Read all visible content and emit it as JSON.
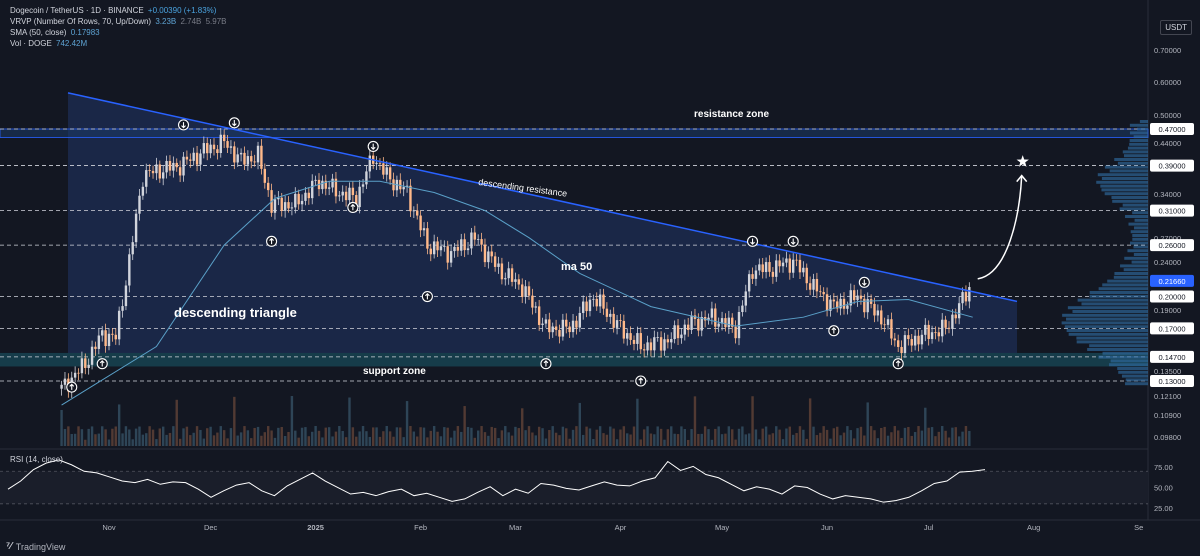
{
  "header": {
    "symbol_line": "Dogecoin / TetherUS · 1D · BINANCE",
    "change": "+0.00390 (+1.83%)",
    "vrvp_label": "VRVP (Number Of Rows, 70, Up/Down)",
    "vrvp_values": [
      "3.23B",
      "2.74B",
      "5.97B"
    ],
    "sma_label": "SMA (50, close)",
    "sma_value": "0.17983",
    "vol_label": "Vol · DOGE",
    "vol_value": "742.42M"
  },
  "currency": "USDT",
  "rsi_label": "RSI (14, close)",
  "branding": "TradingView",
  "annotations": {
    "resistance_zone": "resistance zone",
    "descending_resistance": "descending resistance",
    "ma50": "ma 50",
    "descending_triangle": "descending triangle",
    "support_zone": "support zone"
  },
  "colors": {
    "background": "#131722",
    "triangle_fill": "#1c2a4d",
    "resistance_line": "#2962ff",
    "ma_line": "#5aa0c8",
    "zone_fill": "#26c6da",
    "candle_up": "#d1d4dc",
    "candle_down": "#ffb98a",
    "rsi_line": "#ffffff"
  },
  "chart_data": {
    "type": "candlestick",
    "title": "Dogecoin / TetherUS · 1D · BINANCE",
    "x_tick_labels": [
      "Nov",
      "Dec",
      "2025",
      "Feb",
      "Mar",
      "Apr",
      "May",
      "Jun",
      "Jul",
      "Aug",
      "Se"
    ],
    "y_scale": "log",
    "y_tick_labels": [
      "0.70000",
      "0.60000",
      "0.50000",
      "0.44000",
      "0.34000",
      "0.27000",
      "0.24000",
      "0.19000",
      "0.13500",
      "0.12100",
      "0.10900",
      "0.09800"
    ],
    "highlighted_prices": [
      "0.47000",
      "0.39000",
      "0.31000",
      "0.26000",
      "0.21660",
      "0.20000",
      "0.17000",
      "0.14700",
      "0.13000"
    ],
    "current_price": "0.21660",
    "horizontal_levels": [
      0.47,
      0.39,
      0.31,
      0.26,
      0.2,
      0.17,
      0.147,
      0.13
    ],
    "resistance_zone": [
      0.45,
      0.47
    ],
    "support_zone": [
      0.14,
      0.15
    ],
    "descending_resistance": [
      {
        "date": "2024-10-27",
        "price": 0.55
      },
      {
        "date": "2025-07-14",
        "price": 0.205
      }
    ],
    "projection_target": 0.39,
    "close_series": [
      {
        "date": "2024-10-18",
        "price": 0.125
      },
      {
        "date": "2024-10-25",
        "price": 0.142
      },
      {
        "date": "2024-10-30",
        "price": 0.165
      },
      {
        "date": "2024-11-03",
        "price": 0.162
      },
      {
        "date": "2024-11-07",
        "price": 0.24
      },
      {
        "date": "2024-11-11",
        "price": 0.37
      },
      {
        "date": "2024-11-15",
        "price": 0.38
      },
      {
        "date": "2024-11-22",
        "price": 0.39
      },
      {
        "date": "2024-11-29",
        "price": 0.42
      },
      {
        "date": "2024-12-05",
        "price": 0.44
      },
      {
        "date": "2024-12-10",
        "price": 0.4
      },
      {
        "date": "2024-12-15",
        "price": 0.41
      },
      {
        "date": "2024-12-19",
        "price": 0.32
      },
      {
        "date": "2024-12-26",
        "price": 0.32
      },
      {
        "date": "2025-01-02",
        "price": 0.36
      },
      {
        "date": "2025-01-08",
        "price": 0.34
      },
      {
        "date": "2025-01-13",
        "price": 0.33
      },
      {
        "date": "2025-01-18",
        "price": 0.41
      },
      {
        "date": "2025-01-22",
        "price": 0.37
      },
      {
        "date": "2025-01-28",
        "price": 0.34
      },
      {
        "date": "2025-02-03",
        "price": 0.26
      },
      {
        "date": "2025-02-10",
        "price": 0.25
      },
      {
        "date": "2025-02-17",
        "price": 0.27
      },
      {
        "date": "2025-02-24",
        "price": 0.23
      },
      {
        "date": "2025-03-03",
        "price": 0.21
      },
      {
        "date": "2025-03-10",
        "price": 0.17
      },
      {
        "date": "2025-03-17",
        "price": 0.17
      },
      {
        "date": "2025-03-24",
        "price": 0.2
      },
      {
        "date": "2025-04-01",
        "price": 0.17
      },
      {
        "date": "2025-04-07",
        "price": 0.155
      },
      {
        "date": "2025-04-15",
        "price": 0.16
      },
      {
        "date": "2025-04-22",
        "price": 0.175
      },
      {
        "date": "2025-04-28",
        "price": 0.18
      },
      {
        "date": "2025-05-05",
        "price": 0.17
      },
      {
        "date": "2025-05-10",
        "price": 0.23
      },
      {
        "date": "2025-05-15",
        "price": 0.23
      },
      {
        "date": "2025-05-22",
        "price": 0.24
      },
      {
        "date": "2025-05-28",
        "price": 0.21
      },
      {
        "date": "2025-06-03",
        "price": 0.19
      },
      {
        "date": "2025-06-10",
        "price": 0.2
      },
      {
        "date": "2025-06-17",
        "price": 0.18
      },
      {
        "date": "2025-06-22",
        "price": 0.155
      },
      {
        "date": "2025-06-30",
        "price": 0.165
      },
      {
        "date": "2025-07-06",
        "price": 0.17
      },
      {
        "date": "2025-07-10",
        "price": 0.19
      },
      {
        "date": "2025-07-14",
        "price": 0.2166
      }
    ],
    "sma50_series": [
      {
        "date": "2024-10-18",
        "price": 0.115
      },
      {
        "date": "2024-11-15",
        "price": 0.155
      },
      {
        "date": "2024-12-05",
        "price": 0.26
      },
      {
        "date": "2024-12-20",
        "price": 0.33
      },
      {
        "date": "2025-01-05",
        "price": 0.36
      },
      {
        "date": "2025-01-20",
        "price": 0.36
      },
      {
        "date": "2025-02-05",
        "price": 0.34
      },
      {
        "date": "2025-02-20",
        "price": 0.31
      },
      {
        "date": "2025-03-05",
        "price": 0.27
      },
      {
        "date": "2025-03-20",
        "price": 0.225
      },
      {
        "date": "2025-04-10",
        "price": 0.19
      },
      {
        "date": "2025-05-05",
        "price": 0.172
      },
      {
        "date": "2025-05-25",
        "price": 0.18
      },
      {
        "date": "2025-06-10",
        "price": 0.195
      },
      {
        "date": "2025-06-25",
        "price": 0.197
      },
      {
        "date": "2025-07-14",
        "price": 0.18
      }
    ],
    "up_arrow_markers": [
      {
        "date": "2024-10-21",
        "price": 0.126
      },
      {
        "date": "2024-10-30",
        "price": 0.142
      },
      {
        "date": "2024-12-19",
        "price": 0.265
      },
      {
        "date": "2025-01-12",
        "price": 0.315
      },
      {
        "date": "2025-02-03",
        "price": 0.2
      },
      {
        "date": "2025-03-10",
        "price": 0.142
      },
      {
        "date": "2025-04-07",
        "price": 0.13
      },
      {
        "date": "2025-06-03",
        "price": 0.168
      },
      {
        "date": "2025-06-22",
        "price": 0.142
      }
    ],
    "down_arrow_markers": [
      {
        "date": "2024-11-23",
        "price": 0.48
      },
      {
        "date": "2024-12-08",
        "price": 0.485
      },
      {
        "date": "2025-01-18",
        "price": 0.43
      },
      {
        "date": "2025-05-10",
        "price": 0.265
      },
      {
        "date": "2025-05-22",
        "price": 0.265
      },
      {
        "date": "2025-06-12",
        "price": 0.215
      }
    ],
    "rsi": {
      "y_tick_labels": [
        "75.00",
        "50.00",
        "25.00"
      ],
      "levels": [
        70,
        30
      ],
      "series": [
        48,
        58,
        72,
        80,
        84,
        78,
        70,
        68,
        63,
        58,
        56,
        60,
        54,
        57,
        56,
        48,
        38,
        46,
        53,
        56,
        46,
        40,
        52,
        60,
        68,
        58,
        50,
        42,
        44,
        40,
        45,
        48,
        40,
        43,
        38,
        33,
        36,
        44,
        51,
        40,
        48,
        43,
        55,
        53,
        49,
        47,
        52,
        57,
        53,
        52,
        58,
        62,
        82,
        71,
        76,
        66,
        62,
        54,
        46,
        51,
        48,
        42,
        52,
        50,
        42,
        36,
        40,
        38,
        36,
        32,
        34,
        38,
        46,
        55,
        58,
        69,
        70,
        72
      ]
    }
  }
}
